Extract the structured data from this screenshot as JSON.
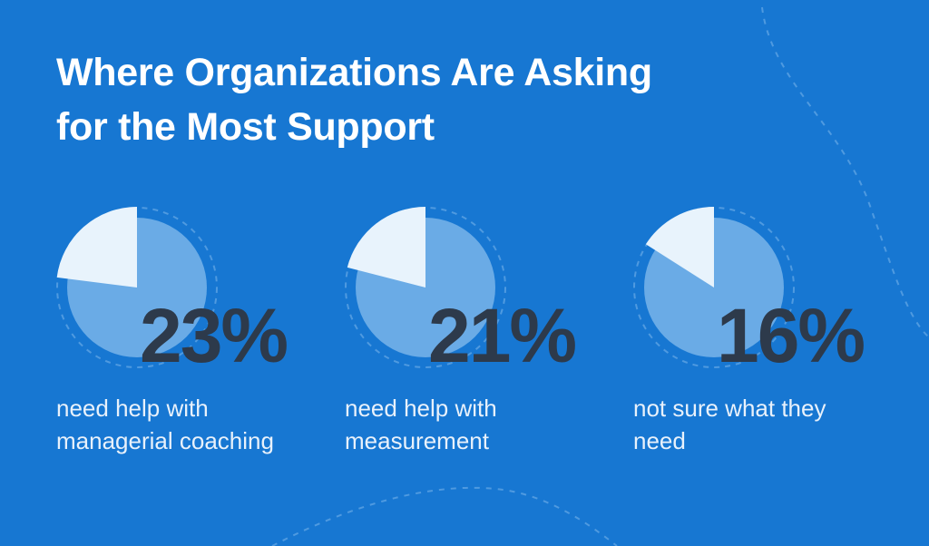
{
  "title_lines": [
    "Where Organizations Are Asking",
    "for the Most Support"
  ],
  "colors": {
    "background": "#1777d2",
    "pie_main": "#6aabe6",
    "pie_slice": "#e8f3fc",
    "dashed_ring": "#4f9ae0",
    "percent_text": "#2d3a4b",
    "label_text": "#e8f1fb"
  },
  "stats": [
    {
      "percent_label": "23%",
      "description": "need help with managerial coaching"
    },
    {
      "percent_label": "21%",
      "description": "need help with measurement"
    },
    {
      "percent_label": "16%",
      "description": "not sure what they need"
    }
  ],
  "chart_data": {
    "type": "pie",
    "title": "Where Organizations Are Asking for the Most Support",
    "categories": [
      "need help with managerial coaching",
      "need help with measurement",
      "not sure what they need"
    ],
    "values": [
      23,
      21,
      16
    ],
    "unit": "%"
  }
}
